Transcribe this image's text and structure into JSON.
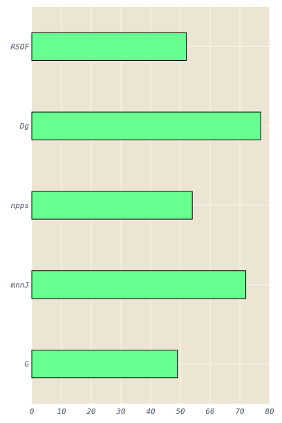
{
  "chart_data": {
    "type": "bar",
    "orientation": "horizontal",
    "categories": [
      "RSOF",
      "Dg",
      "npps",
      "mnnJ",
      "G"
    ],
    "values": [
      52,
      77,
      54,
      72,
      49
    ],
    "title": "",
    "xlabel": "",
    "ylabel": "",
    "xlim": [
      0,
      80
    ],
    "xticks": [
      0,
      10,
      20,
      30,
      40,
      50,
      60,
      70,
      80
    ],
    "grid": true,
    "legend": "none",
    "colors": {
      "plot_background": "#ede5d3",
      "bar_fill": "#66ff90",
      "bar_edge": "#000000",
      "grid": "#ffffff",
      "tick_text": "#4b5563"
    }
  }
}
